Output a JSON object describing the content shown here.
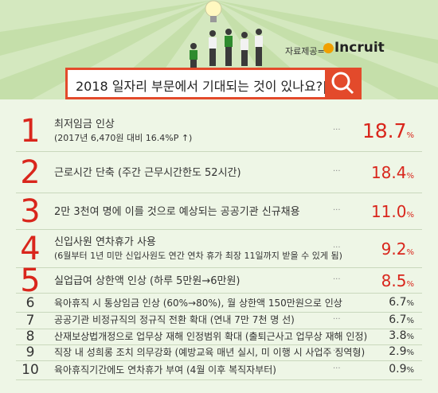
{
  "header": {
    "source_label": "자료제공=",
    "brand": "Incruit",
    "question": "2018 일자리 부문에서 기대되는 것이 있나요?|"
  },
  "colors": {
    "accent": "#e34a2b",
    "rank_red": "#d9261c"
  },
  "items": [
    {
      "rank": "1",
      "label": "최저임금 인상",
      "sub": "(2017년 6,470원 대비 16.4%P ↑)",
      "value": "18.7",
      "unit": "%"
    },
    {
      "rank": "2",
      "label": "근로시간 단축 (주간 근무시간한도 52시간)",
      "sub": "",
      "value": "18.4",
      "unit": "%"
    },
    {
      "rank": "3",
      "label": "2만 3천여 명에 이를 것으로 예상되는 공공기관 신규채용",
      "sub": "",
      "value": "11.0",
      "unit": "%"
    },
    {
      "rank": "4",
      "label": "신입사원 연차휴가 사용",
      "sub": "(6월부터 1년 미만 신입사원도 연간 연차 휴가 최장 11일까지 받을 수 있게 됨)",
      "value": "9.2",
      "unit": "%"
    },
    {
      "rank": "5",
      "label": "실업급여 상한액 인상 (하루 5만원→6만원)",
      "sub": "",
      "value": "8.5",
      "unit": "%"
    },
    {
      "rank": "6",
      "label": "육아휴직 시 통상임금 인상 (60%→80%), 월 상한액 150만원으로 인상",
      "sub": "",
      "value": "6.7",
      "unit": "%"
    },
    {
      "rank": "7",
      "label": "공공기관 비정규직의 정규직 전환 확대 (연내 7만 7천 명 선)",
      "sub": "",
      "value": "6.7",
      "unit": "%"
    },
    {
      "rank": "8",
      "label": "산재보상법개정으로 업무상 재해 인정범위 확대 (출퇴근사고 업무상 재해 인정)",
      "sub": "",
      "value": "3.8",
      "unit": "%"
    },
    {
      "rank": "9",
      "label": "직장 내 성희롱 조치 의무강화 (예방교육 매년 실시, 미 이행 시 사업주 징역형)",
      "sub": "",
      "value": "2.9",
      "unit": "%"
    },
    {
      "rank": "10",
      "label": "육아휴직기간에도 연차휴가 부여 (4월 이후 복직자부터)",
      "sub": "",
      "value": "0.9",
      "unit": "%"
    }
  ],
  "dots_text": "···"
}
